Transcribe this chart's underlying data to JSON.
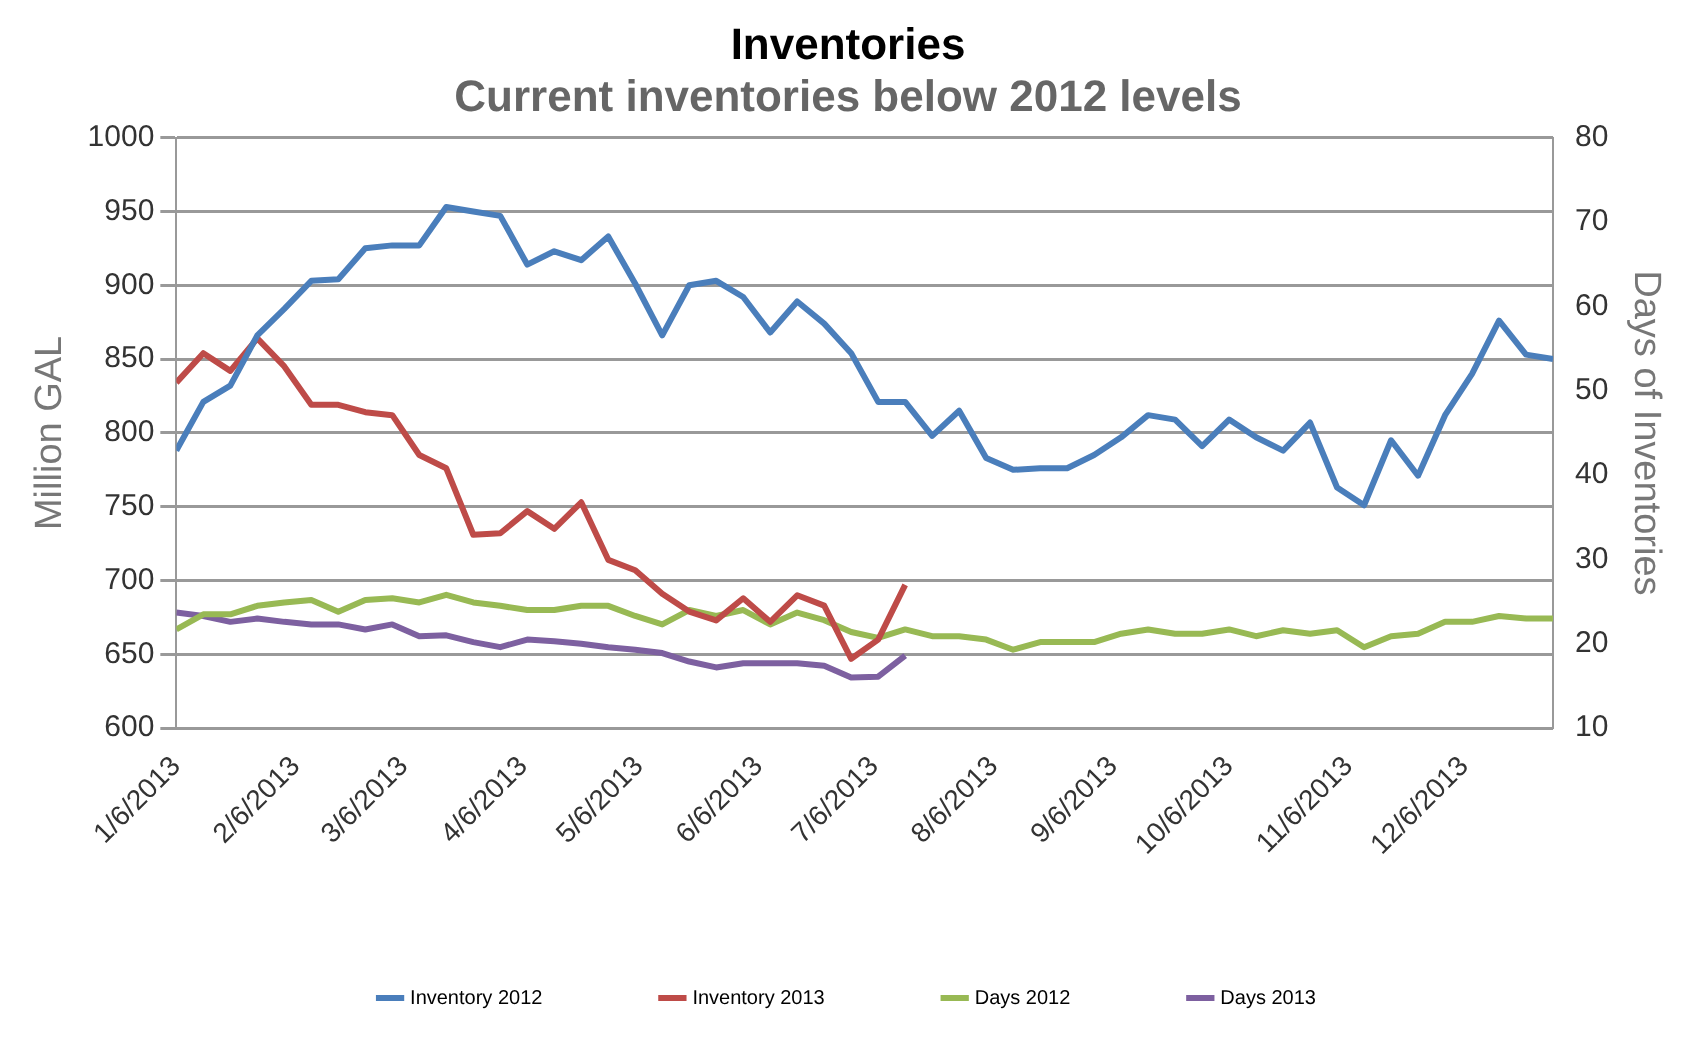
{
  "chart_data": {
    "type": "line",
    "title": "Inventories",
    "subtitle": "Current inventories below 2012 levels",
    "ylabel": "Million GAL",
    "y2label": "Days of Inventories",
    "x": [
      "2013-01-06",
      "2013-01-13",
      "2013-01-20",
      "2013-01-27",
      "2013-02-03",
      "2013-02-10",
      "2013-02-17",
      "2013-02-24",
      "2013-03-03",
      "2013-03-10",
      "2013-03-17",
      "2013-03-24",
      "2013-03-31",
      "2013-04-07",
      "2013-04-14",
      "2013-04-21",
      "2013-04-28",
      "2013-05-05",
      "2013-05-12",
      "2013-05-19",
      "2013-05-26",
      "2013-06-02",
      "2013-06-09",
      "2013-06-16",
      "2013-06-23",
      "2013-06-30",
      "2013-07-07",
      "2013-07-14",
      "2013-07-21",
      "2013-07-28",
      "2013-08-04",
      "2013-08-11",
      "2013-08-18",
      "2013-08-25",
      "2013-09-01",
      "2013-09-08",
      "2013-09-15",
      "2013-09-22",
      "2013-09-29",
      "2013-10-06",
      "2013-10-13",
      "2013-10-20",
      "2013-10-27",
      "2013-11-03",
      "2013-11-10",
      "2013-11-17",
      "2013-11-24",
      "2013-12-01",
      "2013-12-08",
      "2013-12-15",
      "2013-12-22",
      "2013-12-29"
    ],
    "series": [
      {
        "name": "Inventory 2012",
        "color": "#4a7ebb",
        "values": [
          788,
          821,
          832,
          866,
          884,
          903,
          904,
          925,
          927,
          927,
          953,
          950,
          947,
          914,
          923,
          917,
          933,
          901,
          866,
          900,
          903,
          892,
          868,
          889,
          874,
          854,
          821,
          821,
          798,
          815,
          783,
          775,
          776,
          776,
          785,
          797,
          812,
          809,
          791,
          809,
          797,
          788,
          807,
          763,
          751,
          795,
          771,
          812,
          840,
          876,
          853,
          850
        ]
      },
      {
        "name": "Inventory 2013",
        "color": "#be4b48",
        "values": [
          834,
          854,
          842,
          864,
          845,
          819,
          819,
          814,
          812,
          785,
          776,
          731,
          732,
          747,
          735,
          753,
          714,
          707,
          691,
          679,
          673,
          688,
          672,
          690,
          683,
          647,
          660,
          697,
          null,
          null,
          null,
          null,
          null,
          null,
          null,
          null,
          null,
          null,
          null,
          null,
          null,
          null,
          null,
          null,
          null,
          null,
          null,
          null,
          null,
          null,
          null,
          null
        ]
      },
      {
        "name": "Days 2012",
        "color": "#98b954",
        "axis": "y2",
        "values": [
          21.7,
          23.5,
          23.5,
          24.5,
          24.9,
          25.2,
          23.8,
          25.2,
          25.4,
          24.9,
          25.8,
          24.9,
          24.5,
          24.0,
          24.0,
          24.5,
          24.5,
          23.3,
          22.3,
          24.0,
          23.3,
          24.0,
          22.3,
          23.7,
          22.8,
          21.4,
          20.7,
          21.7,
          20.9,
          20.9,
          20.5,
          19.3,
          20.2,
          20.2,
          20.2,
          21.2,
          21.7,
          21.2,
          21.2,
          21.7,
          20.9,
          21.6,
          21.2,
          21.6,
          19.6,
          20.9,
          21.2,
          22.6,
          22.6,
          23.3,
          23.0,
          23.0
        ]
      },
      {
        "name": "Days 2013",
        "color": "#7d60a0",
        "axis": "y2",
        "values": [
          23.7,
          23.3,
          22.6,
          23.0,
          22.6,
          22.3,
          22.3,
          21.7,
          22.3,
          20.9,
          21.0,
          20.2,
          19.6,
          20.5,
          20.3,
          20.0,
          19.6,
          19.3,
          18.9,
          17.9,
          17.2,
          17.7,
          17.7,
          17.7,
          17.4,
          16.0,
          16.1,
          18.6,
          null,
          null,
          null,
          null,
          null,
          null,
          null,
          null,
          null,
          null,
          null,
          null,
          null,
          null,
          null,
          null,
          null,
          null,
          null,
          null,
          null,
          null,
          null,
          null
        ]
      }
    ],
    "xlim": [
      "2013-01-06",
      "2013-12-29"
    ],
    "xticks": [
      {
        "value": "2013-01-06",
        "label": "1/6/2013"
      },
      {
        "value": "2013-02-06",
        "label": "2/6/2013"
      },
      {
        "value": "2013-03-06",
        "label": "3/6/2013"
      },
      {
        "value": "2013-04-06",
        "label": "4/6/2013"
      },
      {
        "value": "2013-05-06",
        "label": "5/6/2013"
      },
      {
        "value": "2013-06-06",
        "label": "6/6/2013"
      },
      {
        "value": "2013-07-06",
        "label": "7/6/2013"
      },
      {
        "value": "2013-08-06",
        "label": "8/6/2013"
      },
      {
        "value": "2013-09-06",
        "label": "9/6/2013"
      },
      {
        "value": "2013-10-06",
        "label": "10/6/2013"
      },
      {
        "value": "2013-11-06",
        "label": "11/6/2013"
      },
      {
        "value": "2013-12-06",
        "label": "12/6/2013"
      }
    ],
    "ylim": [
      600,
      1000
    ],
    "yticks": [
      600,
      650,
      700,
      750,
      800,
      850,
      900,
      950,
      1000
    ],
    "y2lim": [
      10,
      80
    ],
    "y2ticks": [
      10,
      20,
      30,
      40,
      50,
      60,
      70,
      80
    ],
    "grid": "y",
    "legend": "bottom",
    "marker": "none",
    "line_style": "solid"
  }
}
